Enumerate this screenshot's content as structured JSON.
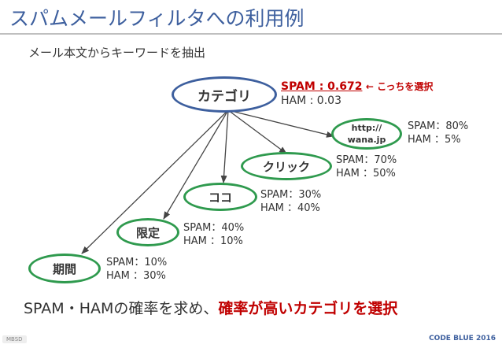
{
  "title": "スパムメールフィルタへの利用例",
  "subtitle": "メール本文からキーワードを抽出",
  "root": {
    "label": "カテゴリ",
    "spam": "SPAM : 0.672",
    "note": "← こっちを選択",
    "ham": "HAM   : 0.03"
  },
  "nodes": [
    {
      "url_line1": "http://",
      "url_line2": "wana.jp",
      "spam": "SPAM：80%",
      "ham": "HAM  ：5%"
    },
    {
      "label": "クリック",
      "spam": "SPAM：70%",
      "ham": "HAM  ：50%"
    },
    {
      "label": "ココ",
      "spam": "SPAM：30%",
      "ham": "HAM  ：40%"
    },
    {
      "label": "限定",
      "spam": "SPAM：40%",
      "ham": "HAM  ：10%"
    },
    {
      "label": "期間",
      "spam": "SPAM：10%",
      "ham": "HAM  ：30%"
    }
  ],
  "conclusion": {
    "plain": "SPAM・HAMの確率を求め、",
    "highlight": "確率が高いカテゴリを選択"
  },
  "footer": {
    "left": "MBSD",
    "right": "CODE BLUE 2016"
  },
  "colors": {
    "title": "#3d5f9e",
    "node_border": "#2f9a4e",
    "root_border": "#3d5f9e",
    "highlight": "#c00000"
  }
}
